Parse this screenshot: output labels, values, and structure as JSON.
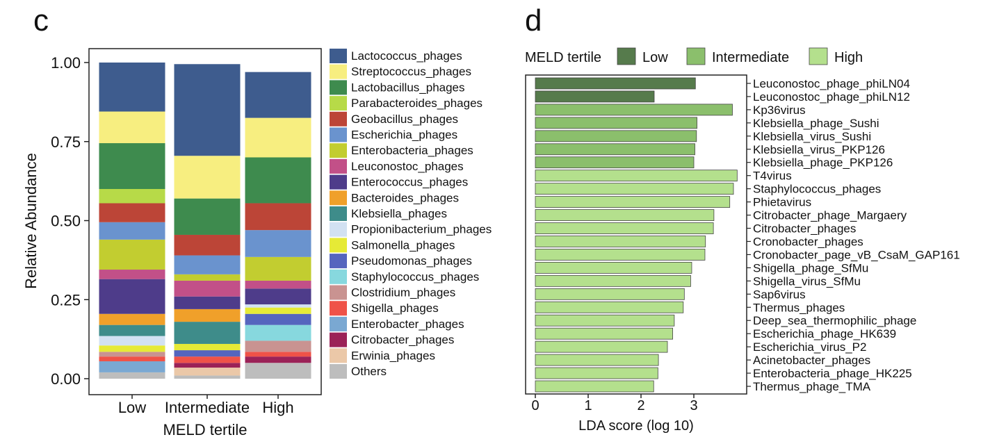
{
  "chart_data": [
    {
      "panel": "c",
      "type": "bar",
      "stacked": true,
      "xlabel": "MELD tertile",
      "ylabel": "Relative Abundance",
      "ylim": [
        0,
        1
      ],
      "yticks": [
        "0.00",
        "0.25",
        "0.50",
        "0.75",
        "1.00"
      ],
      "categories": [
        "Low",
        "Intermediate",
        "High"
      ],
      "legend_position": "right",
      "series": [
        {
          "name": "Lactococcus_phages",
          "color": "#3E5C8E",
          "values": [
            0.155,
            0.29,
            0.145
          ]
        },
        {
          "name": "Streptococcus_phages",
          "color": "#F7EE80",
          "values": [
            0.1,
            0.135,
            0.125
          ]
        },
        {
          "name": "Lactobacillus_phages",
          "color": "#3E8B4E",
          "values": [
            0.145,
            0.115,
            0.145
          ]
        },
        {
          "name": "Parabacteroides_phages",
          "color": "#B7DA48",
          "values": [
            0.045,
            0.0,
            0.0
          ]
        },
        {
          "name": "Geobacillus_phages",
          "color": "#BC4537",
          "values": [
            0.06,
            0.065,
            0.085
          ]
        },
        {
          "name": "Escherichia_phages",
          "color": "#6A93CE",
          "values": [
            0.055,
            0.06,
            0.085
          ]
        },
        {
          "name": "Enterobacteria_phages",
          "color": "#C2CD30",
          "values": [
            0.095,
            0.02,
            0.075
          ]
        },
        {
          "name": "Leuconostoc_phages",
          "color": "#C25088",
          "values": [
            0.03,
            0.05,
            0.025
          ]
        },
        {
          "name": "Enterococcus_phages",
          "color": "#4E3C8A",
          "values": [
            0.11,
            0.04,
            0.05
          ]
        },
        {
          "name": "Bacteroides_phages",
          "color": "#F0A02A",
          "values": [
            0.035,
            0.04,
            0.0
          ]
        },
        {
          "name": "Klebsiella_phages",
          "color": "#3E8C8A",
          "values": [
            0.035,
            0.07,
            0.0
          ]
        },
        {
          "name": "Propionibacterium_phages",
          "color": "#D2E1F2",
          "values": [
            0.03,
            0.0,
            0.01
          ]
        },
        {
          "name": "Salmonella_phages",
          "color": "#E6EA36",
          "values": [
            0.02,
            0.02,
            0.02
          ]
        },
        {
          "name": "Pseudomonas_phages",
          "color": "#5565BE",
          "values": [
            0.0,
            0.02,
            0.035
          ]
        },
        {
          "name": "Staphylococcus_phages",
          "color": "#87D8DE",
          "values": [
            0.0,
            0.0,
            0.05
          ]
        },
        {
          "name": "Clostridium_phages",
          "color": "#C99391",
          "values": [
            0.015,
            0.0,
            0.035
          ]
        },
        {
          "name": "Shigella_phages",
          "color": "#EF5248",
          "values": [
            0.015,
            0.02,
            0.015
          ]
        },
        {
          "name": "Enterobacter_phages",
          "color": "#7AA8D2",
          "values": [
            0.035,
            0.0,
            0.0
          ]
        },
        {
          "name": "Citrobacter_phages",
          "color": "#9B2257",
          "values": [
            0.0,
            0.015,
            0.02
          ]
        },
        {
          "name": "Erwinia_phages",
          "color": "#EBC8A8",
          "values": [
            0.0,
            0.025,
            0.0
          ]
        },
        {
          "name": "Others",
          "color": "#BDBDBD",
          "values": [
            0.02,
            0.01,
            0.05
          ]
        }
      ]
    },
    {
      "panel": "d",
      "type": "bar",
      "orientation": "horizontal",
      "xlabel": "LDA score (log 10)",
      "xlim": [
        0,
        4
      ],
      "xticks": [
        "0",
        "1",
        "2",
        "3"
      ],
      "legend_title": "MELD tertile",
      "legend_position": "top",
      "groups": [
        {
          "name": "Low",
          "color": "#567B4C"
        },
        {
          "name": "Intermediate",
          "color": "#8BBF6C"
        },
        {
          "name": "High",
          "color": "#B4E08D"
        }
      ],
      "bars": [
        {
          "label": "Leuconostoc_phage_phiLN04",
          "group": "Low",
          "value": 3.03
        },
        {
          "label": "Leuconostoc_phage_phiLN12",
          "group": "Low",
          "value": 2.25
        },
        {
          "label": "Kp36virus",
          "group": "Intermediate",
          "value": 3.73
        },
        {
          "label": "Klebsiella_phage_Sushi",
          "group": "Intermediate",
          "value": 3.06
        },
        {
          "label": "Klebsiella_virus_Sushi",
          "group": "Intermediate",
          "value": 3.05
        },
        {
          "label": "Klebsiella_virus_PKP126",
          "group": "Intermediate",
          "value": 3.02
        },
        {
          "label": "Klebsiella_phage_PKP126",
          "group": "Intermediate",
          "value": 3.0
        },
        {
          "label": "T4virus",
          "group": "High",
          "value": 3.82
        },
        {
          "label": "Staphylococcus_phages",
          "group": "High",
          "value": 3.75
        },
        {
          "label": "Phietavirus",
          "group": "High",
          "value": 3.68
        },
        {
          "label": "Citrobacter_phage_Margaery",
          "group": "High",
          "value": 3.38
        },
        {
          "label": "Citrobacter_phages",
          "group": "High",
          "value": 3.37
        },
        {
          "label": "Cronobacter_phages",
          "group": "High",
          "value": 3.22
        },
        {
          "label": "Cronobacter_page_vB_CsaM_GAP161",
          "group": "High",
          "value": 3.21
        },
        {
          "label": "Shigella_phage_SfMu",
          "group": "High",
          "value": 2.96
        },
        {
          "label": "Shigella_virus_SfMu",
          "group": "High",
          "value": 2.94
        },
        {
          "label": "Sap6virus",
          "group": "High",
          "value": 2.82
        },
        {
          "label": "Thermus_phages",
          "group": "High",
          "value": 2.8
        },
        {
          "label": "Deep_sea_thermophilic_phage",
          "group": "High",
          "value": 2.63
        },
        {
          "label": "Escherichia_phage_HK639",
          "group": "High",
          "value": 2.6
        },
        {
          "label": "Escherichia_virus_P2",
          "group": "High",
          "value": 2.5
        },
        {
          "label": "Acinetobacter_phages",
          "group": "High",
          "value": 2.33
        },
        {
          "label": "Enterobacteria_phage_HK225",
          "group": "High",
          "value": 2.32
        },
        {
          "label": "Thermus_phage_TMA",
          "group": "High",
          "value": 2.24
        }
      ]
    }
  ],
  "panels": {
    "c": "c",
    "d": "d"
  }
}
